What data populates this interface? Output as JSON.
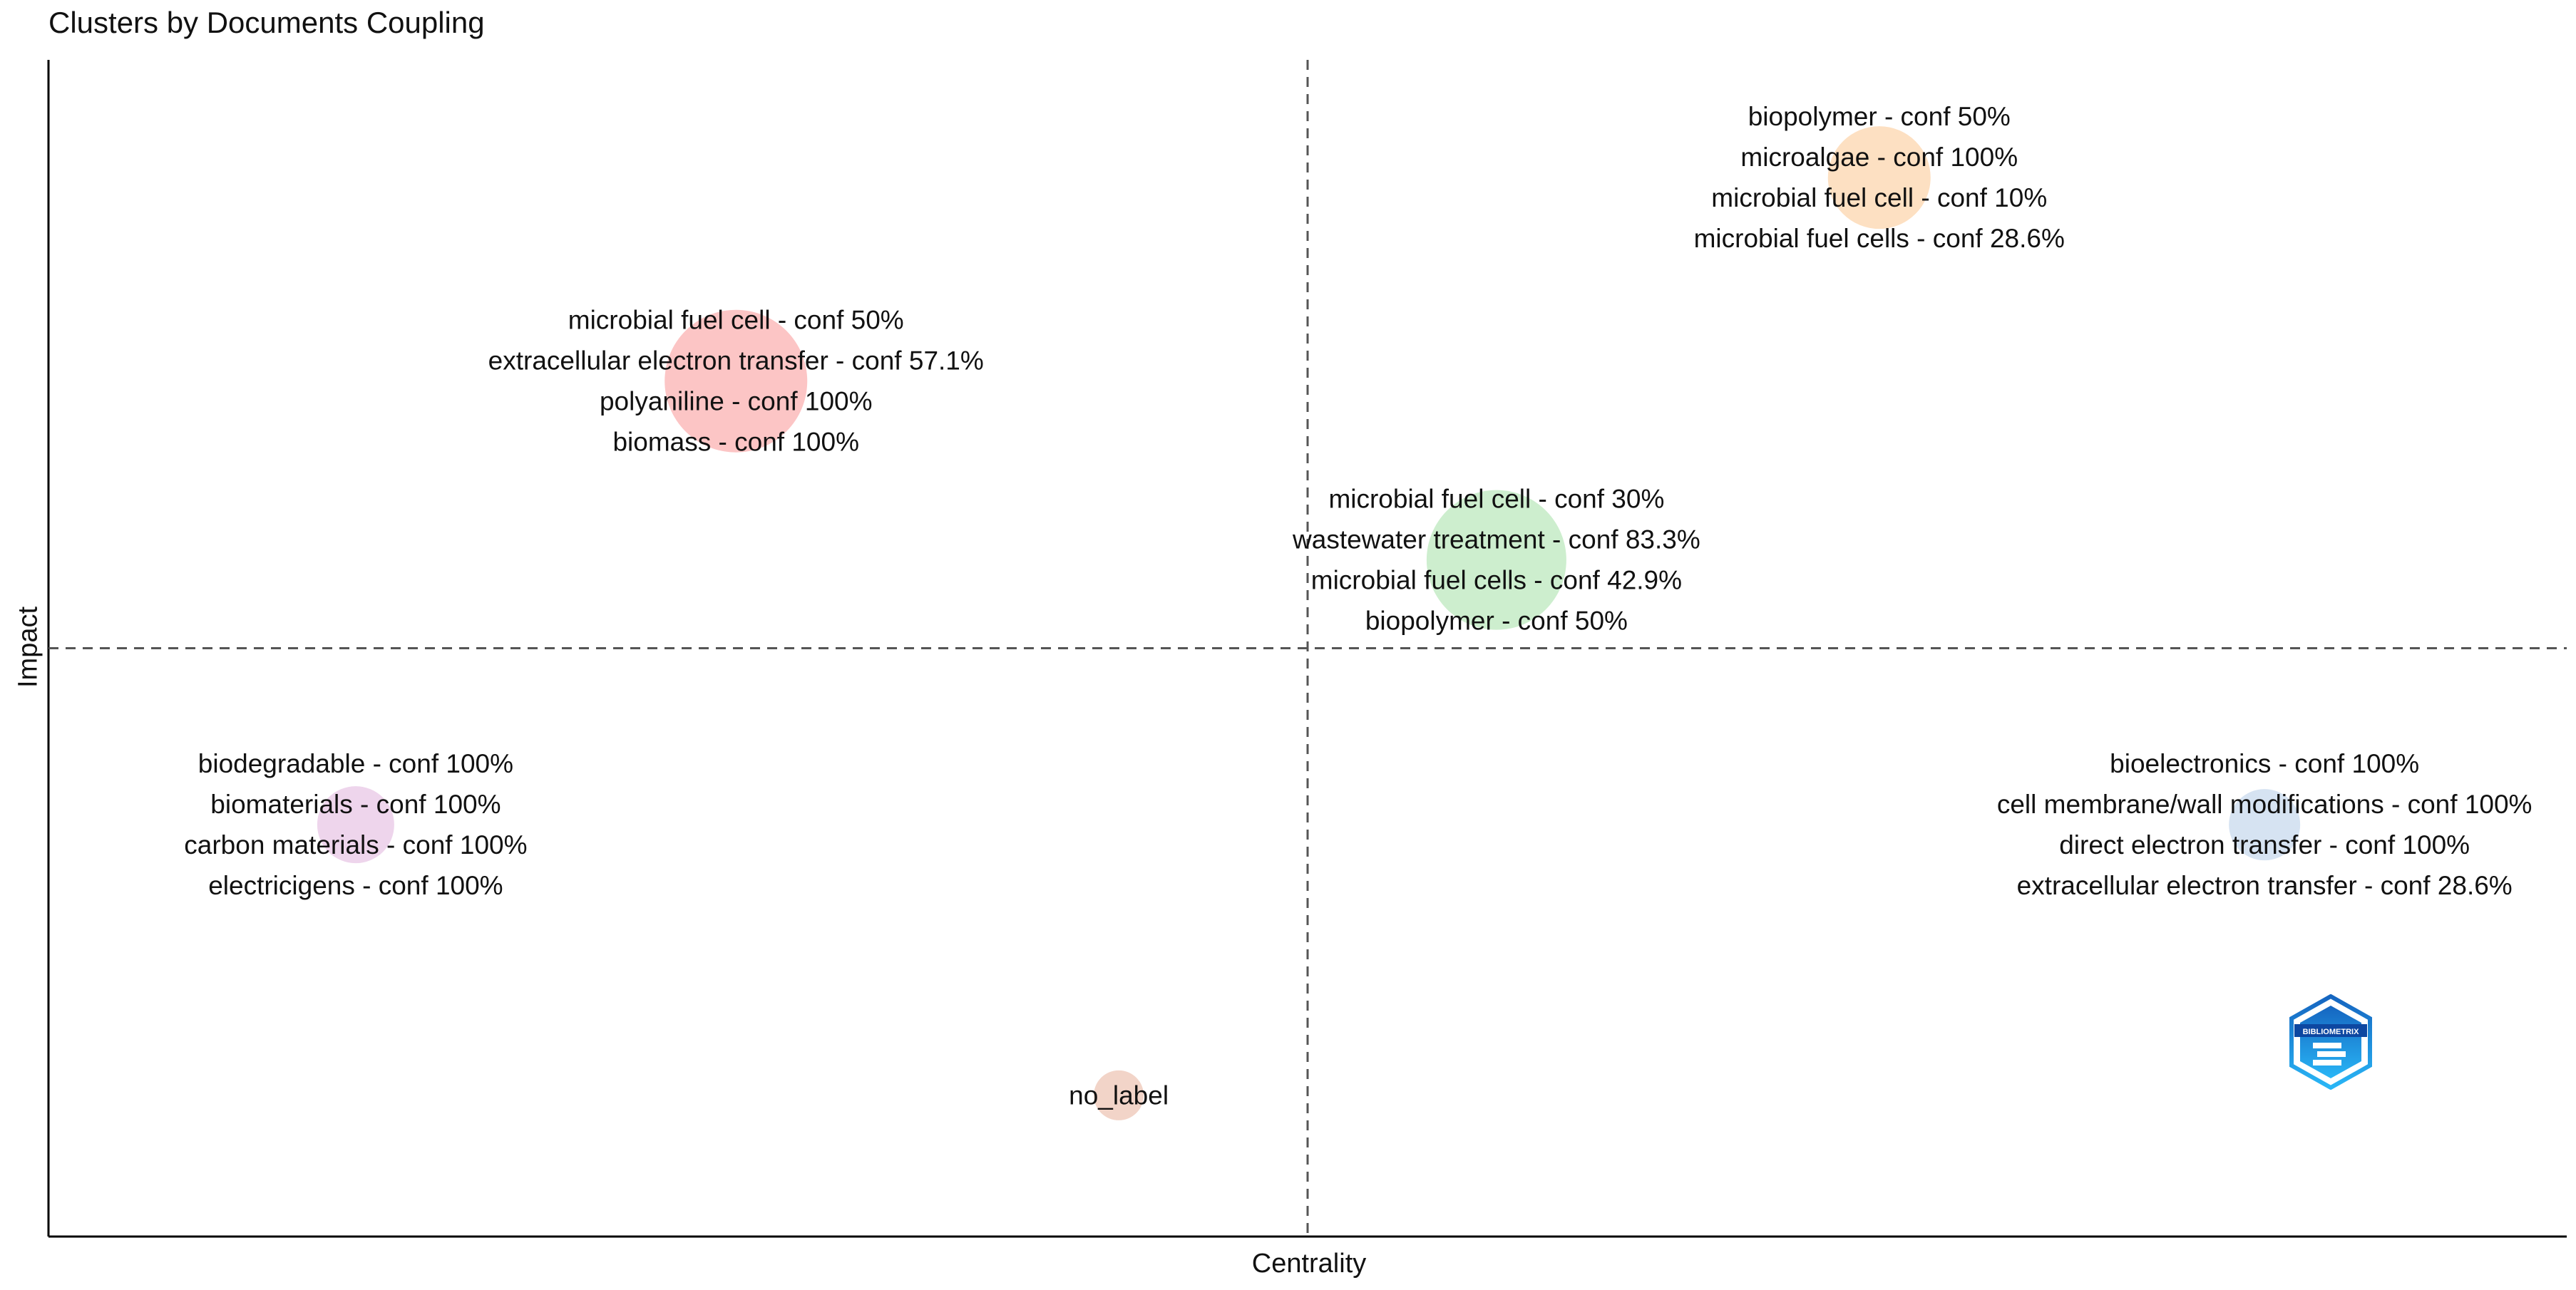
{
  "chart_data": {
    "type": "scatter",
    "title": "Clusters by Documents Coupling",
    "xlabel": "Centrality",
    "ylabel": "Impact",
    "xlim": [
      0,
      1
    ],
    "ylim": [
      0,
      1
    ],
    "grid": false,
    "reference_lines": {
      "x": 0.5,
      "y": 0.5
    },
    "clusters": [
      {
        "name": "red",
        "color": "#fcc5c5",
        "x": 0.273,
        "y": 0.727,
        "size": 1.0,
        "labels": [
          "microbial fuel cell - conf 50%",
          "extracellular electron transfer - conf 57.1%",
          "polyaniline - conf 100%",
          "biomass - conf 100%"
        ]
      },
      {
        "name": "orange",
        "color": "#fde0c2",
        "x": 0.727,
        "y": 0.9,
        "size": 0.72,
        "labels": [
          "biopolymer - conf 50%",
          "microalgae - conf 100%",
          "microbial fuel cell - conf 10%",
          "microbial fuel cells - conf 28.6%"
        ]
      },
      {
        "name": "green",
        "color": "#cdeece",
        "x": 0.575,
        "y": 0.575,
        "size": 0.98,
        "labels": [
          "microbial fuel cell - conf 30%",
          "wastewater treatment - conf 83.3%",
          "microbial fuel cells - conf 42.9%",
          "biopolymer - conf 50%"
        ]
      },
      {
        "name": "purple",
        "color": "#eed5ec",
        "x": 0.122,
        "y": 0.35,
        "size": 0.54,
        "labels": [
          "biodegradable - conf 100%",
          "biomaterials - conf 100%",
          "carbon materials - conf 100%",
          "electricigens - conf 100%"
        ]
      },
      {
        "name": "blue",
        "color": "#d6e3f2",
        "x": 0.88,
        "y": 0.35,
        "size": 0.5,
        "labels": [
          "bioelectronics - conf 100%",
          "cell membrane/wall modifications - conf 100%",
          "direct electron transfer - conf 100%",
          "extracellular electron transfer - conf 28.6%"
        ]
      },
      {
        "name": "brown",
        "color": "#f2d4c8",
        "x": 0.425,
        "y": 0.12,
        "size": 0.35,
        "labels": [
          "no_label"
        ]
      }
    ]
  },
  "watermark": {
    "text": "BIBLIOMETRIX",
    "color": "#1e88e5"
  }
}
